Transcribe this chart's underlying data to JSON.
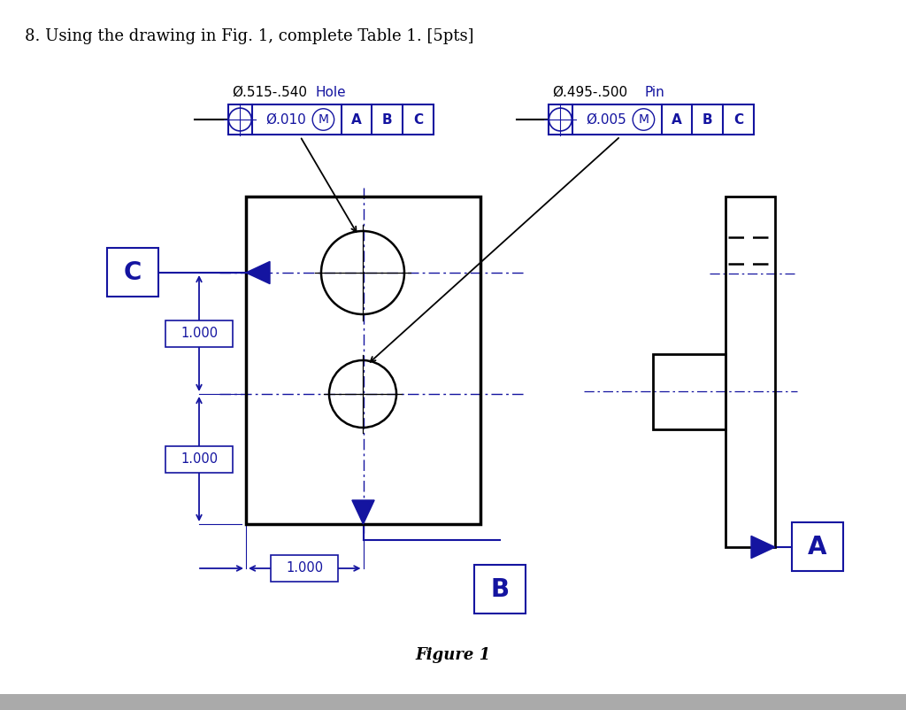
{
  "title": "8. Using the drawing in Fig. 1, complete Table 1. [5pts]",
  "figure_label": "Figure 1",
  "title_fontsize": 13,
  "blue": "#1414A0",
  "black": "#000000",
  "gray": "#AAAAAA",
  "bg": "#FFFFFF",
  "hole_dia": "Ø.515-.540",
  "hole_word": "Hole",
  "hole_tol": "Ø.010",
  "pin_dia": "Ø.495-.500",
  "pin_word": "Pin",
  "pin_tol": "Ø.005",
  "dim_1000": "1.000",
  "M_sym": "M",
  "A": "A",
  "B": "B",
  "C": "C"
}
